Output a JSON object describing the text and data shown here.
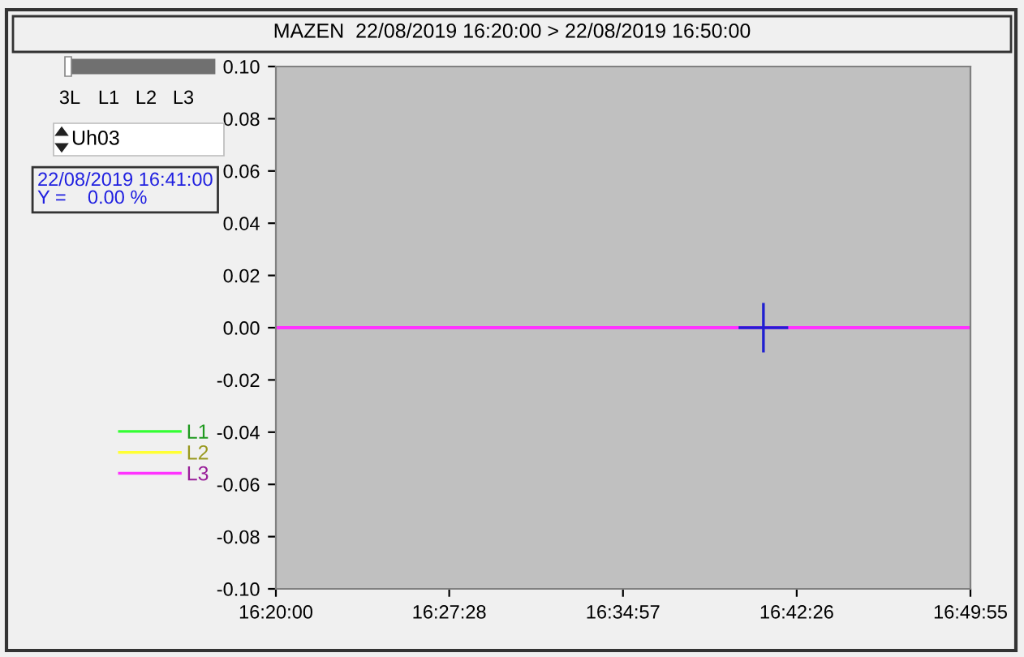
{
  "chart_data": {
    "type": "line",
    "title": "MAZEN  22/08/2019 16:20:00 > 22/08/2019 16:50:00",
    "x": [
      16.333333,
      16.831944
    ],
    "series": [
      {
        "name": "L1",
        "color": "#33ff33",
        "values": [
          null,
          null
        ]
      },
      {
        "name": "L2",
        "color": "#ffff33",
        "values": [
          null,
          null
        ]
      },
      {
        "name": "L3",
        "color": "#ff33ff",
        "values": [
          0,
          0
        ]
      }
    ],
    "xlim": [
      16.333333,
      16.831944
    ],
    "xticks": [
      {
        "value": 16.333333,
        "label": "16:20:00"
      },
      {
        "value": 16.457778,
        "label": "16:27:28"
      },
      {
        "value": 16.5825,
        "label": "16:34:57"
      },
      {
        "value": 16.707222,
        "label": "16:42:26"
      },
      {
        "value": 16.831944,
        "label": "16:49:55"
      }
    ],
    "ylim": [
      -0.1,
      0.1
    ],
    "yticks": [
      {
        "value": -0.1,
        "label": "-0.10"
      },
      {
        "value": -0.08,
        "label": "-0.08"
      },
      {
        "value": -0.06,
        "label": "-0.06"
      },
      {
        "value": -0.04,
        "label": "-0.04"
      },
      {
        "value": -0.02,
        "label": "-0.02"
      },
      {
        "value": 0,
        "label": "0.00"
      },
      {
        "value": 0.02,
        "label": "0.02"
      },
      {
        "value": 0.04,
        "label": "0.04"
      },
      {
        "value": 0.06,
        "label": "0.06"
      },
      {
        "value": 0.08,
        "label": "0.08"
      },
      {
        "value": 0.1,
        "label": "0.10"
      }
    ],
    "annotations": [
      "3L",
      "L1",
      "L2",
      "L3",
      "Uh03",
      "22/08/2019 16:41:00\nY =    0.00 %"
    ],
    "grid": false,
    "legend": "left",
    "marker": "none",
    "line_style": "solid"
  }
}
